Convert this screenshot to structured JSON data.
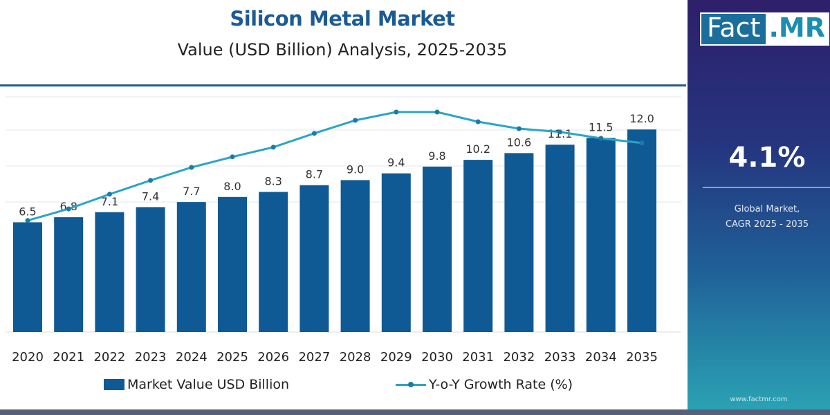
{
  "header": {
    "title": "Silicon Metal Market",
    "subtitle": "Value (USD Billion) Analysis, 2025-2035"
  },
  "panel": {
    "logo_left": "Fact",
    "logo_right": ".MR",
    "cagr_value": "4.1%",
    "cagr_label_line1": "Global Market,",
    "cagr_label_line2": "CAGR 2025 - 2035",
    "url": "www.factmr.com"
  },
  "colors": {
    "bar": "#0f5a94",
    "line": "#2aa5c6",
    "title": "#1b5a94"
  },
  "chart_data": {
    "type": "bar",
    "title": "Silicon Metal Market",
    "subtitle": "Value (USD Billion) Analysis, 2025-2035",
    "categories": [
      "2020",
      "2021",
      "2022",
      "2023",
      "2024",
      "2025",
      "2026",
      "2027",
      "2028",
      "2029",
      "2030",
      "2031",
      "2032",
      "2033",
      "2034",
      "2035"
    ],
    "series": [
      {
        "name": "Market Value USD Billion",
        "type": "bar",
        "values": [
          6.5,
          6.8,
          7.1,
          7.4,
          7.7,
          8.0,
          8.3,
          8.7,
          9.0,
          9.4,
          9.8,
          10.2,
          10.6,
          11.1,
          11.5,
          12.0
        ],
        "labels": [
          "6.5",
          "6.8",
          "7.1",
          "7.4",
          "7.7",
          "8.0",
          "8.3",
          "8.7",
          "9.0",
          "9.4",
          "9.8",
          "10.2",
          "10.6",
          "11.1",
          "11.5",
          "12.0"
        ]
      },
      {
        "name": "Y-o-Y Growth Rate (%)",
        "type": "line",
        "values": [
          4.03,
          4.45,
          4.98,
          5.48,
          5.95,
          6.33,
          6.68,
          7.18,
          7.65,
          7.95,
          7.95,
          7.6,
          7.35,
          7.23,
          7.0,
          6.83
        ]
      }
    ],
    "ylim": [
      0,
      13
    ],
    "y_axis_visible": false,
    "grid": true,
    "legend_position": "bottom"
  }
}
